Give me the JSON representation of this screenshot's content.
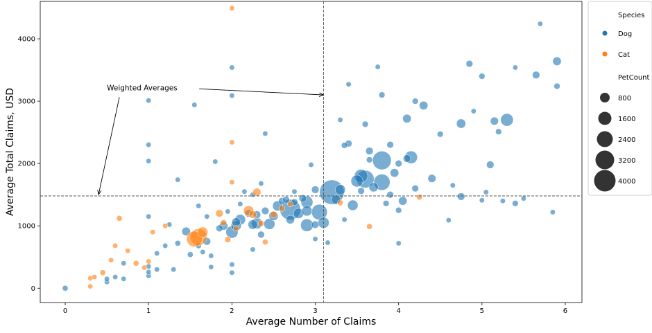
{
  "chart_data": {
    "type": "scatter",
    "title": "",
    "xlabel": "Average Number of Claims",
    "ylabel": "Average Total Claims, USD",
    "xlim": [
      -0.3,
      6.2
    ],
    "ylim": [
      -230,
      4600
    ],
    "xticks": [
      0,
      1,
      2,
      3,
      4,
      5,
      6
    ],
    "yticks": [
      0,
      1000,
      2000,
      3000,
      4000
    ],
    "grid": false,
    "legend": {
      "placement": "outside-right",
      "hue_title": "Species",
      "hue_entries": [
        {
          "label": "Dog",
          "color": "#1f77b4"
        },
        {
          "label": "Cat",
          "color": "#ff7f0e"
        }
      ],
      "size_title": "PetCount",
      "size_entries": [
        {
          "label": "800",
          "value": 800
        },
        {
          "label": "1600",
          "value": 1600
        },
        {
          "label": "2400",
          "value": 2400
        },
        {
          "label": "3200",
          "value": 3200
        },
        {
          "label": "4000",
          "value": 4000
        }
      ]
    },
    "reference_lines": {
      "vertical_x": 3.1,
      "horizontal_y": 1480
    },
    "annotation": {
      "text": "Weighted Averages",
      "text_x": 0.5,
      "text_y": 3220,
      "arrow_targets": [
        {
          "x": 0.4,
          "y": 1480
        },
        {
          "x": 3.1,
          "y": 3100
        }
      ]
    },
    "series": [
      {
        "name": "Dog",
        "color": "#1f77b4",
        "points": [
          [
            0.0,
            0,
            30
          ],
          [
            0.5,
            100,
            20
          ],
          [
            0.5,
            150,
            20
          ],
          [
            0.6,
            180,
            20
          ],
          [
            0.7,
            150,
            20
          ],
          [
            0.7,
            400,
            20
          ],
          [
            1.0,
            200,
            20
          ],
          [
            1.0,
            260,
            20
          ],
          [
            1.0,
            350,
            20
          ],
          [
            1.0,
            1150,
            20
          ],
          [
            1.0,
            2040,
            20
          ],
          [
            1.0,
            2300,
            20
          ],
          [
            1.0,
            3010,
            20
          ],
          [
            1.1,
            300,
            20
          ],
          [
            1.1,
            560,
            20
          ],
          [
            1.2,
            680,
            20
          ],
          [
            1.25,
            1020,
            20
          ],
          [
            1.3,
            300,
            20
          ],
          [
            1.35,
            720,
            30
          ],
          [
            1.35,
            1740,
            20
          ],
          [
            1.45,
            910,
            120
          ],
          [
            1.5,
            540,
            30
          ],
          [
            1.55,
            2940,
            20
          ],
          [
            1.6,
            680,
            30
          ],
          [
            1.6,
            1320,
            20
          ],
          [
            1.65,
            580,
            20
          ],
          [
            1.7,
            750,
            80
          ],
          [
            1.7,
            1150,
            20
          ],
          [
            1.75,
            340,
            20
          ],
          [
            1.75,
            520,
            20
          ],
          [
            1.8,
            2030,
            20
          ],
          [
            1.85,
            960,
            60
          ],
          [
            1.9,
            1000,
            120
          ],
          [
            1.95,
            1230,
            20
          ],
          [
            2.0,
            900,
            320
          ],
          [
            2.0,
            250,
            20
          ],
          [
            2.0,
            380,
            20
          ],
          [
            2.0,
            3540,
            20
          ],
          [
            2.0,
            3090,
            20
          ],
          [
            2.05,
            1000,
            200
          ],
          [
            2.05,
            1060,
            120
          ],
          [
            2.1,
            1100,
            220
          ],
          [
            2.1,
            1350,
            20
          ],
          [
            2.15,
            1550,
            20
          ],
          [
            2.2,
            1200,
            80
          ],
          [
            2.25,
            620,
            20
          ],
          [
            2.25,
            1500,
            20
          ],
          [
            2.25,
            1020,
            160
          ],
          [
            2.3,
            1040,
            250
          ],
          [
            2.3,
            1180,
            80
          ],
          [
            2.35,
            860,
            60
          ],
          [
            2.35,
            1680,
            20
          ],
          [
            2.4,
            2480,
            20
          ],
          [
            2.4,
            1240,
            80
          ],
          [
            2.45,
            1030,
            250
          ],
          [
            2.5,
            1160,
            150
          ],
          [
            2.55,
            1320,
            200
          ],
          [
            2.6,
            1400,
            60
          ],
          [
            2.65,
            1420,
            60
          ],
          [
            2.7,
            1260,
            1150
          ],
          [
            2.7,
            1100,
            120
          ],
          [
            2.75,
            1380,
            60
          ],
          [
            2.75,
            1550,
            20
          ],
          [
            2.8,
            1200,
            200
          ],
          [
            2.85,
            1440,
            80
          ],
          [
            2.9,
            1010,
            350
          ],
          [
            2.9,
            1380,
            300
          ],
          [
            2.9,
            1240,
            200
          ],
          [
            2.95,
            1980,
            20
          ],
          [
            3.0,
            1580,
            80
          ],
          [
            3.0,
            1020,
            80
          ],
          [
            3.0,
            790,
            20
          ],
          [
            3.05,
            1220,
            600
          ],
          [
            3.1,
            1050,
            250
          ],
          [
            3.15,
            730,
            20
          ],
          [
            3.2,
            1540,
            1700
          ],
          [
            3.25,
            1420,
            150
          ],
          [
            3.3,
            1580,
            200
          ],
          [
            3.3,
            2700,
            20
          ],
          [
            3.35,
            2290,
            40
          ],
          [
            3.35,
            1100,
            20
          ],
          [
            3.4,
            2320,
            60
          ],
          [
            3.4,
            3270,
            20
          ],
          [
            3.45,
            1330,
            220
          ],
          [
            3.5,
            1720,
            300
          ],
          [
            3.55,
            1800,
            400
          ],
          [
            3.55,
            1560,
            60
          ],
          [
            3.6,
            1750,
            800
          ],
          [
            3.6,
            2630,
            40
          ],
          [
            3.65,
            2200,
            80
          ],
          [
            3.65,
            2060,
            40
          ],
          [
            3.7,
            1620,
            150
          ],
          [
            3.75,
            3550,
            20
          ],
          [
            3.8,
            3100,
            40
          ],
          [
            3.8,
            2050,
            900
          ],
          [
            3.8,
            1700,
            650
          ],
          [
            3.85,
            1360,
            40
          ],
          [
            3.9,
            1500,
            60
          ],
          [
            3.9,
            2300,
            60
          ],
          [
            3.95,
            1850,
            120
          ],
          [
            4.0,
            2000,
            60
          ],
          [
            4.0,
            1250,
            40
          ],
          [
            4.0,
            720,
            20
          ],
          [
            4.05,
            1400,
            120
          ],
          [
            4.1,
            2080,
            80
          ],
          [
            4.1,
            2720,
            120
          ],
          [
            4.15,
            2100,
            350
          ],
          [
            4.2,
            1600,
            60
          ],
          [
            4.2,
            3000,
            40
          ],
          [
            4.3,
            2930,
            120
          ],
          [
            4.4,
            1760,
            100
          ],
          [
            4.5,
            2470,
            40
          ],
          [
            4.6,
            1090,
            20
          ],
          [
            4.65,
            1650,
            20
          ],
          [
            4.75,
            2640,
            150
          ],
          [
            4.75,
            1470,
            80
          ],
          [
            4.85,
            3600,
            60
          ],
          [
            4.9,
            2840,
            20
          ],
          [
            5.0,
            3400,
            40
          ],
          [
            5.0,
            1410,
            20
          ],
          [
            5.05,
            1540,
            20
          ],
          [
            5.1,
            1980,
            80
          ],
          [
            5.15,
            2680,
            100
          ],
          [
            5.2,
            2510,
            40
          ],
          [
            5.25,
            1400,
            20
          ],
          [
            5.3,
            2700,
            350
          ],
          [
            5.4,
            3540,
            20
          ],
          [
            5.4,
            1360,
            40
          ],
          [
            5.5,
            1440,
            20
          ],
          [
            5.65,
            3420,
            80
          ],
          [
            5.7,
            4240,
            20
          ],
          [
            5.85,
            1220,
            20
          ],
          [
            5.9,
            3640,
            120
          ],
          [
            5.9,
            3240,
            40
          ]
        ]
      },
      {
        "name": "Cat",
        "color": "#ff7f0e",
        "points": [
          [
            0.3,
            30,
            20
          ],
          [
            0.3,
            160,
            20
          ],
          [
            0.35,
            180,
            20
          ],
          [
            0.45,
            250,
            30
          ],
          [
            0.55,
            450,
            20
          ],
          [
            0.6,
            680,
            20
          ],
          [
            0.65,
            1120,
            30
          ],
          [
            0.75,
            600,
            20
          ],
          [
            0.85,
            400,
            30
          ],
          [
            0.95,
            330,
            20
          ],
          [
            1.0,
            430,
            20
          ],
          [
            1.05,
            900,
            20
          ],
          [
            1.2,
            1000,
            20
          ],
          [
            1.55,
            790,
            600
          ],
          [
            1.6,
            820,
            700
          ],
          [
            1.65,
            900,
            200
          ],
          [
            1.85,
            1200,
            80
          ],
          [
            1.9,
            1050,
            40
          ],
          [
            1.95,
            780,
            40
          ],
          [
            2.0,
            1700,
            20
          ],
          [
            2.0,
            2340,
            20
          ],
          [
            2.0,
            4490,
            20
          ],
          [
            2.05,
            960,
            30
          ],
          [
            2.2,
            1240,
            200
          ],
          [
            2.25,
            1180,
            80
          ],
          [
            2.3,
            1540,
            100
          ],
          [
            2.35,
            1040,
            40
          ],
          [
            2.4,
            740,
            30
          ],
          [
            2.5,
            1180,
            60
          ],
          [
            2.6,
            1280,
            40
          ],
          [
            2.7,
            1350,
            30
          ],
          [
            3.3,
            1370,
            30
          ],
          [
            3.65,
            990,
            30
          ],
          [
            4.25,
            1460,
            30
          ]
        ]
      }
    ]
  }
}
